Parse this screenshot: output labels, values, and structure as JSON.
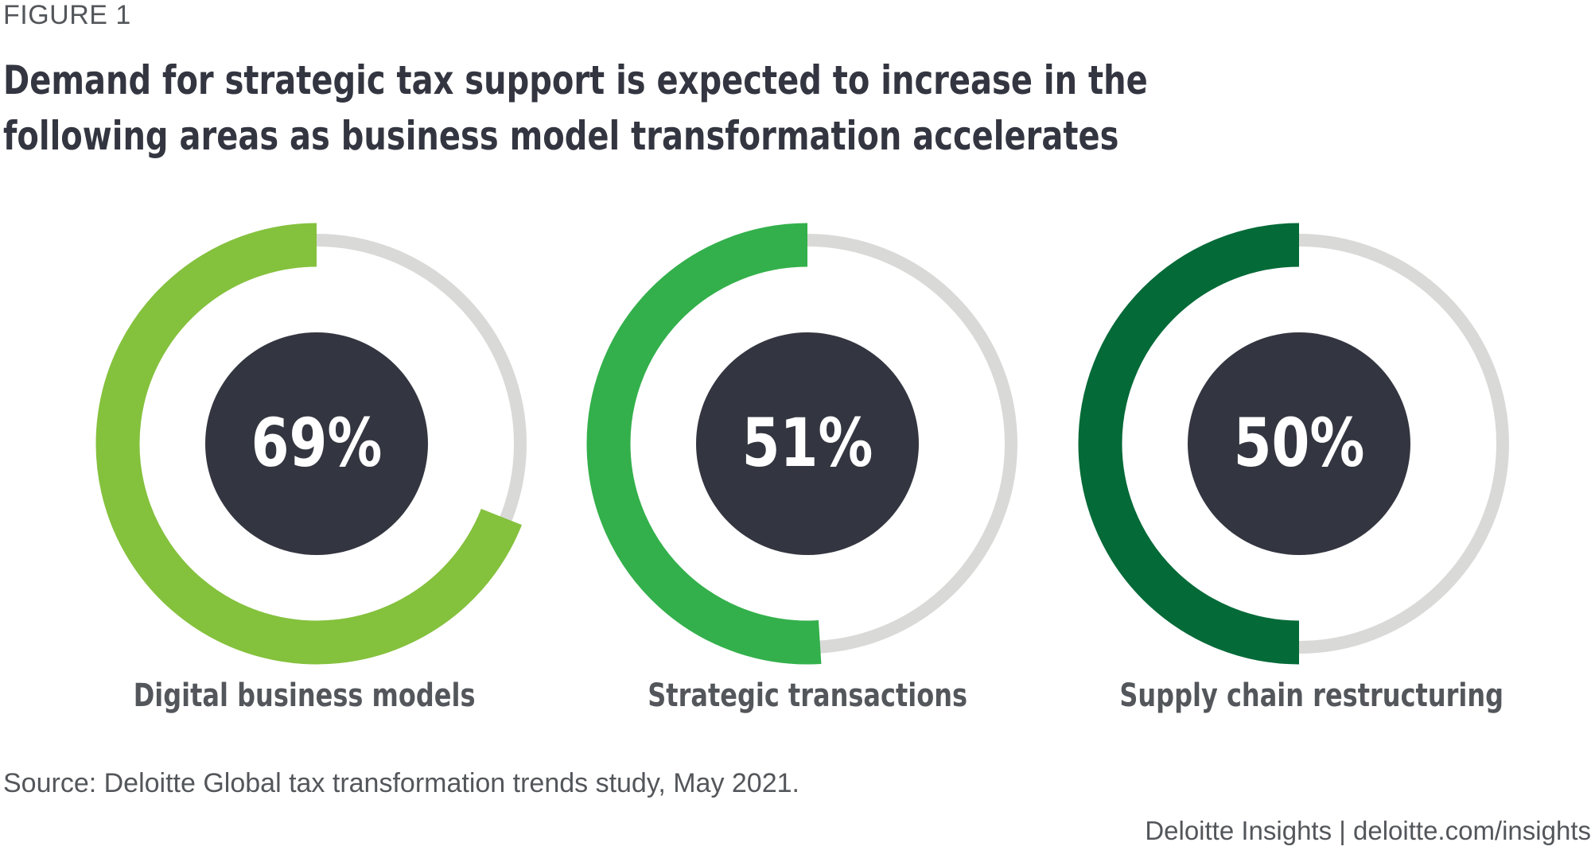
{
  "figure_label": "FIGURE 1",
  "footer": {
    "source": "Source: Deloitte Global tax transformation trends study, May 2021.",
    "credit": "Deloitte Insights | deloitte.com/insights"
  },
  "colors": {
    "track": "#d9dad7",
    "center": "#333640",
    "center_text": "#ffffff",
    "series": [
      "#84c13d",
      "#33b04b",
      "#046a38"
    ]
  },
  "chart_data": {
    "type": "donut",
    "title": "Demand for strategic tax support is expected to increase in the following areas as business model transformation accelerates",
    "unit": "%",
    "max": 100,
    "categories": [
      "Digital business models",
      "Strategic transactions",
      "Supply chain restructuring"
    ],
    "values": [
      69,
      51,
      50
    ],
    "value_labels": [
      "69%",
      "51%",
      "50%"
    ]
  }
}
